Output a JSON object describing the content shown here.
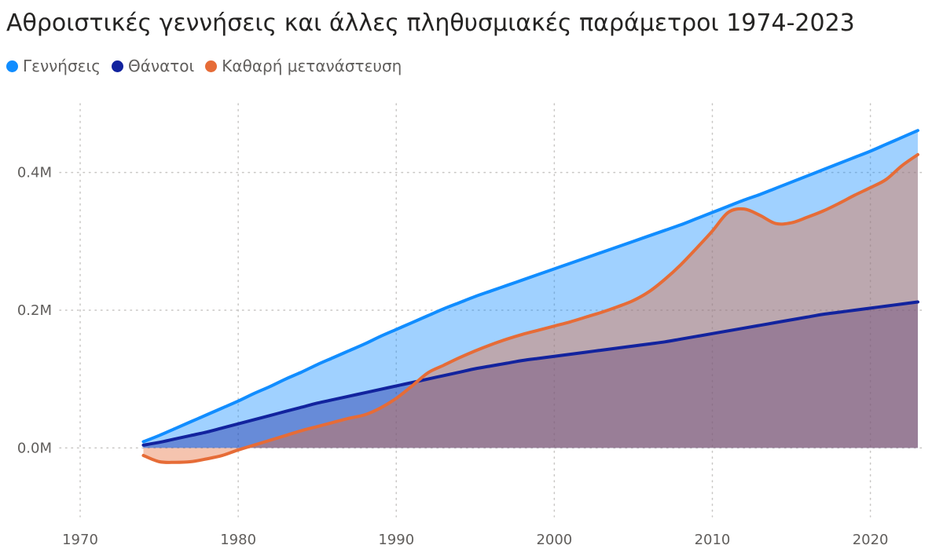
{
  "chart_data": {
    "type": "area",
    "title": "Αθροιστικές γεννήσεις και άλλες πληθυσμιακές παράμετροι 1974-2023",
    "xlabel": "",
    "ylabel": "",
    "x_ticks": [
      "1970",
      "1980",
      "1990",
      "2000",
      "2010",
      "2020"
    ],
    "x_tick_values": [
      1970,
      1980,
      1990,
      2000,
      2010,
      2020
    ],
    "y_ticks": [
      "0.0M",
      "0.2M",
      "0.4M"
    ],
    "y_tick_values": [
      0,
      0.2,
      0.4
    ],
    "xlim": [
      1969.9,
      2023.5
    ],
    "ylim": [
      -0.1,
      0.5
    ],
    "grid": true,
    "legend_position": "top-left",
    "series": [
      {
        "name": "Γεννήσεις",
        "color": "#118DFF",
        "fill": "#118DFF",
        "x": [
          1974,
          1975,
          1976,
          1977,
          1978,
          1979,
          1980,
          1981,
          1982,
          1983,
          1984,
          1985,
          1986,
          1987,
          1988,
          1989,
          1990,
          1991,
          1992,
          1993,
          1994,
          1995,
          1996,
          1997,
          1998,
          1999,
          2000,
          2001,
          2002,
          2003,
          2004,
          2005,
          2006,
          2007,
          2008,
          2009,
          2010,
          2011,
          2012,
          2013,
          2014,
          2015,
          2016,
          2017,
          2018,
          2019,
          2020,
          2021,
          2022,
          2023
        ],
        "values": [
          0.009,
          0.018,
          0.028,
          0.038,
          0.048,
          0.058,
          0.068,
          0.079,
          0.089,
          0.1,
          0.11,
          0.121,
          0.131,
          0.141,
          0.151,
          0.162,
          0.172,
          0.182,
          0.192,
          0.202,
          0.211,
          0.22,
          0.228,
          0.236,
          0.244,
          0.252,
          0.26,
          0.268,
          0.276,
          0.284,
          0.292,
          0.3,
          0.308,
          0.316,
          0.324,
          0.333,
          0.342,
          0.351,
          0.36,
          0.368,
          0.377,
          0.386,
          0.395,
          0.404,
          0.413,
          0.422,
          0.431,
          0.441,
          0.451,
          0.461
        ]
      },
      {
        "name": "Θάνατοι",
        "color": "#12239E",
        "fill": "#12239E",
        "x": [
          1974,
          1975,
          1976,
          1977,
          1978,
          1979,
          1980,
          1981,
          1982,
          1983,
          1984,
          1985,
          1986,
          1987,
          1988,
          1989,
          1990,
          1991,
          1992,
          1993,
          1994,
          1995,
          1996,
          1997,
          1998,
          1999,
          2000,
          2001,
          2002,
          2003,
          2004,
          2005,
          2006,
          2007,
          2008,
          2009,
          2010,
          2011,
          2012,
          2013,
          2014,
          2015,
          2016,
          2017,
          2018,
          2019,
          2020,
          2021,
          2022,
          2023
        ],
        "values": [
          0.004,
          0.008,
          0.013,
          0.018,
          0.023,
          0.029,
          0.035,
          0.041,
          0.047,
          0.053,
          0.059,
          0.065,
          0.07,
          0.075,
          0.08,
          0.085,
          0.09,
          0.095,
          0.1,
          0.105,
          0.11,
          0.115,
          0.119,
          0.123,
          0.127,
          0.13,
          0.133,
          0.136,
          0.139,
          0.142,
          0.145,
          0.148,
          0.151,
          0.154,
          0.158,
          0.162,
          0.166,
          0.17,
          0.174,
          0.178,
          0.182,
          0.186,
          0.19,
          0.194,
          0.197,
          0.2,
          0.203,
          0.206,
          0.209,
          0.212
        ]
      },
      {
        "name": "Καθαρή μετανάστευση",
        "color": "#E66C37",
        "fill": "#E66C37",
        "x": [
          1974,
          1975,
          1976,
          1977,
          1978,
          1979,
          1980,
          1981,
          1982,
          1983,
          1984,
          1985,
          1986,
          1987,
          1988,
          1989,
          1990,
          1991,
          1992,
          1993,
          1994,
          1995,
          1996,
          1997,
          1998,
          1999,
          2000,
          2001,
          2002,
          2003,
          2004,
          2005,
          2006,
          2007,
          2008,
          2009,
          2010,
          2011,
          2012,
          2013,
          2014,
          2015,
          2016,
          2017,
          2018,
          2019,
          2020,
          2021,
          2022,
          2023
        ],
        "values": [
          -0.011,
          -0.02,
          -0.021,
          -0.02,
          -0.016,
          -0.011,
          -0.003,
          0.004,
          0.011,
          0.018,
          0.025,
          0.031,
          0.037,
          0.043,
          0.048,
          0.058,
          0.072,
          0.09,
          0.109,
          0.12,
          0.131,
          0.141,
          0.15,
          0.158,
          0.165,
          0.171,
          0.177,
          0.183,
          0.19,
          0.197,
          0.205,
          0.214,
          0.227,
          0.245,
          0.266,
          0.29,
          0.315,
          0.342,
          0.347,
          0.338,
          0.326,
          0.327,
          0.335,
          0.344,
          0.355,
          0.367,
          0.378,
          0.39,
          0.41,
          0.426
        ]
      }
    ]
  }
}
